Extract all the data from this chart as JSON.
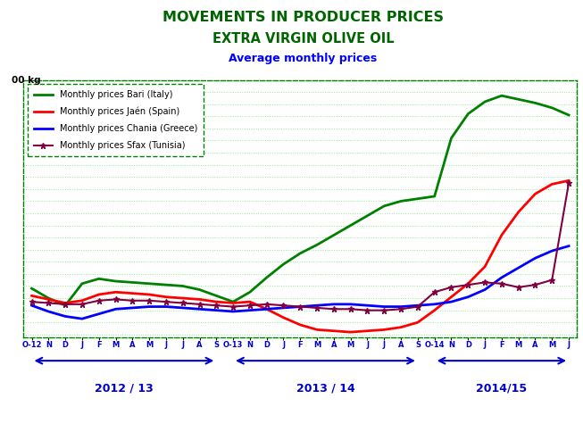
{
  "title1": "MOVEMENTS IN PRODUCER PRICES",
  "title2": "EXTRA VIRGIN OLIVE OIL",
  "title3": "Average monthly prices",
  "ylabel": "00 kg",
  "title1_color": "#006400",
  "title2_color": "#006400",
  "title3_color": "#0000FF",
  "x_labels": [
    "O-12",
    "N",
    "D",
    "J",
    "F",
    "M",
    "A",
    "M",
    "J",
    "J",
    "A",
    "S",
    "O-13",
    "N",
    "D",
    "J",
    "F",
    "M",
    "A",
    "M",
    "J",
    "J",
    "A",
    "S",
    "O-14",
    "N",
    "D",
    "J",
    "F",
    "M",
    "A",
    "M",
    "J"
  ],
  "season_labels": [
    "2012 / 13",
    "2013 / 14",
    "2014/15"
  ],
  "season_label_color": "#0000CD",
  "bari": [
    3.4,
    3.0,
    2.7,
    3.6,
    3.8,
    3.7,
    3.65,
    3.6,
    3.55,
    3.5,
    3.35,
    3.1,
    2.85,
    3.25,
    3.85,
    4.4,
    4.85,
    5.2,
    5.6,
    6.0,
    6.4,
    6.8,
    7.0,
    7.1,
    7.2,
    9.6,
    10.6,
    11.1,
    11.35,
    11.2,
    11.05,
    10.85,
    10.55
  ],
  "jaen": [
    3.1,
    2.95,
    2.8,
    2.9,
    3.15,
    3.25,
    3.2,
    3.15,
    3.05,
    3.0,
    2.95,
    2.85,
    2.8,
    2.85,
    2.55,
    2.2,
    1.9,
    1.7,
    1.65,
    1.6,
    1.65,
    1.7,
    1.8,
    2.0,
    2.5,
    3.05,
    3.6,
    4.3,
    5.6,
    6.55,
    7.3,
    7.7,
    7.85
  ],
  "chania": [
    2.7,
    2.45,
    2.25,
    2.15,
    2.35,
    2.55,
    2.6,
    2.65,
    2.65,
    2.6,
    2.55,
    2.5,
    2.45,
    2.5,
    2.55,
    2.6,
    2.65,
    2.7,
    2.75,
    2.75,
    2.7,
    2.65,
    2.65,
    2.7,
    2.75,
    2.85,
    3.05,
    3.35,
    3.85,
    4.25,
    4.65,
    4.95,
    5.15
  ],
  "sfax": [
    2.85,
    2.8,
    2.75,
    2.75,
    2.9,
    2.95,
    2.9,
    2.9,
    2.85,
    2.8,
    2.75,
    2.7,
    2.65,
    2.7,
    2.75,
    2.7,
    2.65,
    2.6,
    2.55,
    2.55,
    2.5,
    2.5,
    2.55,
    2.65,
    3.25,
    3.45,
    3.55,
    3.65,
    3.6,
    3.45,
    3.55,
    3.75,
    7.75
  ],
  "bari_color": "#008000",
  "jaen_color": "#FF0000",
  "chania_color": "#0000FF",
  "sfax_color": "#800040",
  "bg_color": "#FFFFFF",
  "plot_bg_color": "#FFFFFF",
  "grid_color": "#90EE90",
  "legend_labels": [
    "Monthly prices Bari (Italy)",
    "Monthly prices Jaén (Spain)",
    "Monthly prices Chania (Greece)",
    "Monthly prices Sfax (Tunisia)"
  ],
  "ylim": [
    1.4,
    12.0
  ],
  "arrow_color": "#0000CD",
  "season_spans": [
    {
      "label": "2012 / 13",
      "start": 0,
      "end": 11
    },
    {
      "label": "2013 / 14",
      "start": 12,
      "end": 23
    },
    {
      "label": "2014/15",
      "start": 24,
      "end": 32
    }
  ]
}
